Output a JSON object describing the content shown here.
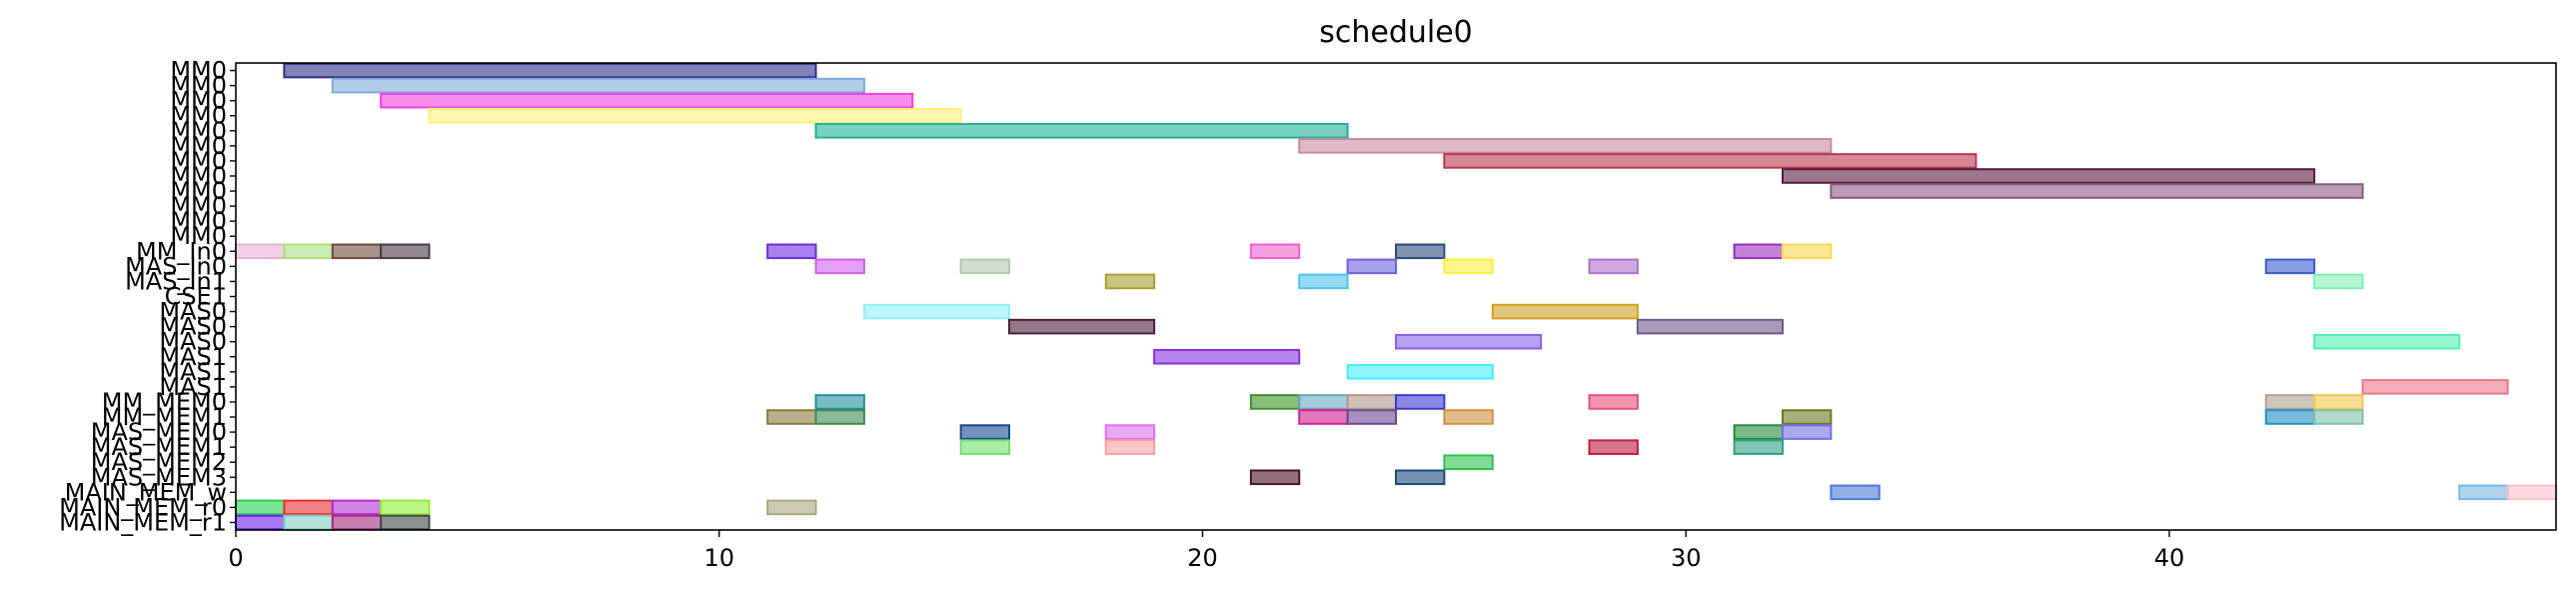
{
  "chart_data": {
    "type": "gantt",
    "title": "schedule0",
    "xlabel": "",
    "ylabel": "",
    "xlim": [
      0,
      48
    ],
    "xticks": [
      0,
      10,
      20,
      30,
      40
    ],
    "xtick_labels": [
      "0",
      "10",
      "20",
      "30",
      "40"
    ],
    "grid": false,
    "rows": [
      "MM0",
      "MM0",
      "MM0",
      "MM0",
      "MM0",
      "MM0",
      "MM0",
      "MM0",
      "MM0",
      "MM0",
      "MM0",
      "MM0",
      "MM_In0",
      "MAS_In0",
      "MAS_In1",
      "CSE1",
      "MAS0",
      "MAS0",
      "MAS0",
      "MAS1",
      "MAS1",
      "MAS1",
      "MM_MEM0",
      "MM_MEM1",
      "MAS_MEM0",
      "MAS_MEM1",
      "MAS_MEM2",
      "MAS_MEM3",
      "MAIN_MEM_w",
      "MAIN_MEM_r0",
      "MAIN_MEM_r1"
    ],
    "tasks": [
      {
        "row": 0,
        "start": 1,
        "end": 12,
        "color": "#2e2e8c"
      },
      {
        "row": 1,
        "start": 2,
        "end": 13,
        "color": "#7fa8d8"
      },
      {
        "row": 2,
        "start": 3,
        "end": 14,
        "color": "#f040e0"
      },
      {
        "row": 3,
        "start": 4,
        "end": 15,
        "color": "#fff07a"
      },
      {
        "row": 4,
        "start": 12,
        "end": 23,
        "color": "#22b09a"
      },
      {
        "row": 5,
        "start": 22,
        "end": 33,
        "color": "#c888a0"
      },
      {
        "row": 6,
        "start": 25,
        "end": 36,
        "color": "#b8384e"
      },
      {
        "row": 7,
        "start": 32,
        "end": 43,
        "color": "#5a1a3e"
      },
      {
        "row": 8,
        "start": 33,
        "end": 44,
        "color": "#8a5a80"
      },
      {
        "row": 12,
        "start": 0,
        "end": 1,
        "color": "#e8b0d0"
      },
      {
        "row": 12,
        "start": 1,
        "end": 2,
        "color": "#a8e080"
      },
      {
        "row": 12,
        "start": 2,
        "end": 3,
        "color": "#6e4a3e"
      },
      {
        "row": 12,
        "start": 3,
        "end": 4,
        "color": "#4a3a46"
      },
      {
        "row": 12,
        "start": 11,
        "end": 12,
        "color": "#6c2ee0"
      },
      {
        "row": 12,
        "start": 21,
        "end": 22,
        "color": "#f060d0"
      },
      {
        "row": 12,
        "start": 24,
        "end": 25,
        "color": "#2a4a7e"
      },
      {
        "row": 12,
        "start": 31,
        "end": 32,
        "color": "#9a2ec0"
      },
      {
        "row": 12,
        "start": 32,
        "end": 33,
        "color": "#f8d850"
      },
      {
        "row": 13,
        "start": 12,
        "end": 13,
        "color": "#d060f0"
      },
      {
        "row": 13,
        "start": 15,
        "end": 16,
        "color": "#b0c8b0"
      },
      {
        "row": 13,
        "start": 23,
        "end": 24,
        "color": "#7060e0"
      },
      {
        "row": 13,
        "start": 25,
        "end": 26,
        "color": "#f8f040"
      },
      {
        "row": 13,
        "start": 28,
        "end": 29,
        "color": "#b070c8"
      },
      {
        "row": 13,
        "start": 42,
        "end": 43,
        "color": "#3a5ad0"
      },
      {
        "row": 14,
        "start": 18,
        "end": 19,
        "color": "#a8a030"
      },
      {
        "row": 14,
        "start": 22,
        "end": 23,
        "color": "#50c0f0"
      },
      {
        "row": 14,
        "start": 43,
        "end": 44,
        "color": "#80f0b0"
      },
      {
        "row": 16,
        "start": 13,
        "end": 16,
        "color": "#90f0f8"
      },
      {
        "row": 16,
        "start": 26,
        "end": 29,
        "color": "#d0a020"
      },
      {
        "row": 17,
        "start": 16,
        "end": 19,
        "color": "#4a1e38"
      },
      {
        "row": 17,
        "start": 29,
        "end": 32,
        "color": "#6a5a88"
      },
      {
        "row": 18,
        "start": 24,
        "end": 27,
        "color": "#8a60e8"
      },
      {
        "row": 18,
        "start": 43,
        "end": 46,
        "color": "#50f0b0"
      },
      {
        "row": 19,
        "start": 19,
        "end": 22,
        "color": "#8a30e0"
      },
      {
        "row": 20,
        "start": 23,
        "end": 26,
        "color": "#40f0f8"
      },
      {
        "row": 21,
        "start": 44,
        "end": 47,
        "color": "#e87888"
      },
      {
        "row": 22,
        "start": 12,
        "end": 13,
        "color": "#2090a0"
      },
      {
        "row": 22,
        "start": 21,
        "end": 22,
        "color": "#409028"
      },
      {
        "row": 22,
        "start": 22,
        "end": 23,
        "color": "#6aa8c0"
      },
      {
        "row": 22,
        "start": 23,
        "end": 24,
        "color": "#b09888"
      },
      {
        "row": 22,
        "start": 24,
        "end": 25,
        "color": "#3a3ad0"
      },
      {
        "row": 22,
        "start": 28,
        "end": 29,
        "color": "#e8507a"
      },
      {
        "row": 22,
        "start": 42,
        "end": 43,
        "color": "#b0a090"
      },
      {
        "row": 22,
        "start": 43,
        "end": 44,
        "color": "#f0c850"
      },
      {
        "row": 23,
        "start": 11,
        "end": 12,
        "color": "#8a7a40"
      },
      {
        "row": 23,
        "start": 12,
        "end": 13,
        "color": "#3a8a50"
      },
      {
        "row": 23,
        "start": 22,
        "end": 23,
        "color": "#d02090"
      },
      {
        "row": 23,
        "start": 23,
        "end": 24,
        "color": "#6a4a90"
      },
      {
        "row": 23,
        "start": 25,
        "end": 26,
        "color": "#d09040"
      },
      {
        "row": 23,
        "start": 32,
        "end": 33,
        "color": "#6a7a20"
      },
      {
        "row": 23,
        "start": 42,
        "end": 43,
        "color": "#2090c0"
      },
      {
        "row": 23,
        "start": 43,
        "end": 44,
        "color": "#80c0a8"
      },
      {
        "row": 24,
        "start": 15,
        "end": 16,
        "color": "#1a4a8e"
      },
      {
        "row": 24,
        "start": 18,
        "end": 19,
        "color": "#e070f0"
      },
      {
        "row": 24,
        "start": 31,
        "end": 32,
        "color": "#208a40"
      },
      {
        "row": 24,
        "start": 32,
        "end": 33,
        "color": "#7070e0"
      },
      {
        "row": 25,
        "start": 15,
        "end": 16,
        "color": "#70e070"
      },
      {
        "row": 25,
        "start": 18,
        "end": 19,
        "color": "#f8a0a0"
      },
      {
        "row": 25,
        "start": 28,
        "end": 29,
        "color": "#c01a40"
      },
      {
        "row": 25,
        "start": 31,
        "end": 32,
        "color": "#30a080"
      },
      {
        "row": 26,
        "start": 25,
        "end": 26,
        "color": "#30c050"
      },
      {
        "row": 27,
        "start": 21,
        "end": 22,
        "color": "#4a1028"
      },
      {
        "row": 27,
        "start": 24,
        "end": 25,
        "color": "#1a4a7e"
      },
      {
        "row": 28,
        "start": 33,
        "end": 34,
        "color": "#4a7ad8"
      },
      {
        "row": 28,
        "start": 46,
        "end": 47,
        "color": "#7ab8e0"
      },
      {
        "row": 28,
        "start": 47,
        "end": 48,
        "color": "#f8c0c8"
      },
      {
        "row": 29,
        "start": 0,
        "end": 1,
        "color": "#20d050"
      },
      {
        "row": 29,
        "start": 1,
        "end": 2,
        "color": "#e83030"
      },
      {
        "row": 29,
        "start": 2,
        "end": 3,
        "color": "#b030d0"
      },
      {
        "row": 29,
        "start": 3,
        "end": 4,
        "color": "#90f030"
      },
      {
        "row": 29,
        "start": 11,
        "end": 12,
        "color": "#a8a880"
      },
      {
        "row": 30,
        "start": 0,
        "end": 1,
        "color": "#6a20f0"
      },
      {
        "row": 30,
        "start": 1,
        "end": 2,
        "color": "#80d0c0"
      },
      {
        "row": 30,
        "start": 2,
        "end": 3,
        "color": "#a02880"
      },
      {
        "row": 30,
        "start": 3,
        "end": 4,
        "color": "#404a4a"
      }
    ]
  }
}
